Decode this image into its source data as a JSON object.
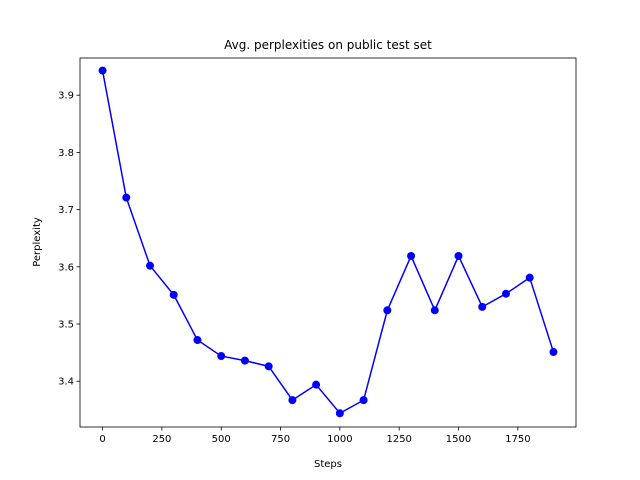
{
  "chart_data": {
    "type": "line",
    "title": "Avg. perplexities on public test set",
    "xlabel": "Steps",
    "ylabel": "Perplexity",
    "xlim": [
      -95,
      1995
    ],
    "ylim": [
      3.32,
      3.965
    ],
    "xticks": [
      0,
      250,
      500,
      750,
      1000,
      1250,
      1500,
      1750
    ],
    "yticks": [
      3.4,
      3.5,
      3.6,
      3.7,
      3.8,
      3.9
    ],
    "xtick_labels": [
      "0",
      "250",
      "500",
      "750",
      "1000",
      "1250",
      "1500",
      "1750"
    ],
    "ytick_labels": [
      "3.4",
      "3.5",
      "3.6",
      "3.7",
      "3.8",
      "3.9"
    ],
    "grid": false,
    "series": [
      {
        "color": "#0000ff",
        "marker": "circle",
        "x": [
          0,
          100,
          200,
          300,
          400,
          500,
          600,
          700,
          800,
          900,
          1000,
          1100,
          1200,
          1300,
          1400,
          1500,
          1600,
          1700,
          1800,
          1900
        ],
        "y": [
          3.943,
          3.721,
          3.602,
          3.551,
          3.472,
          3.444,
          3.436,
          3.426,
          3.367,
          3.394,
          3.344,
          3.367,
          3.524,
          3.619,
          3.524,
          3.619,
          3.53,
          3.553,
          3.581,
          3.451
        ]
      }
    ]
  }
}
